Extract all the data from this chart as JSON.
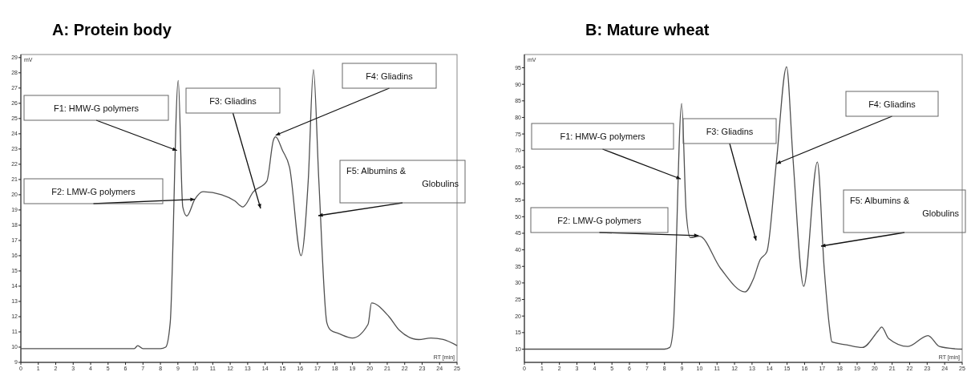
{
  "chart_data": [
    {
      "type": "line",
      "title": "A: Protein body",
      "xlabel": "RT [min]",
      "ylabel": "mV",
      "color": "#505050",
      "x": [
        0,
        1,
        2,
        3,
        4,
        5,
        6,
        6.5,
        6.7,
        7,
        8,
        8.3,
        8.56,
        9.02,
        9.28,
        9.51,
        9.97,
        10.43,
        11.5,
        12.26,
        12.72,
        13.33,
        14.1,
        14.48,
        14.6,
        15.0,
        15.4,
        16.06,
        16.47,
        16.77,
        17.08,
        17.54,
        17.77,
        18.2,
        19.0,
        19.9,
        20.1,
        21.1,
        21.7,
        22.8,
        23.5,
        24.2,
        25
      ],
      "values": [
        9.9,
        9.9,
        9.9,
        9.9,
        9.9,
        9.9,
        9.9,
        9.9,
        10.1,
        9.9,
        9.9,
        10.0,
        11.6,
        27.5,
        19.2,
        18.6,
        19.7,
        20.2,
        20.0,
        19.6,
        19.2,
        20.2,
        20.9,
        23.6,
        23.8,
        22.9,
        21.8,
        16.0,
        20.9,
        28.2,
        20.9,
        11.6,
        11.1,
        10.9,
        10.6,
        11.5,
        12.9,
        12.0,
        11.1,
        10.5,
        10.6,
        10.5,
        10.1
      ],
      "xlim": [
        0,
        25
      ],
      "ylim": [
        9,
        29.2
      ],
      "xticks": [
        0,
        1,
        2,
        3,
        4,
        5,
        6,
        7,
        8,
        9,
        10,
        11,
        12,
        13,
        14,
        15,
        16,
        17,
        18,
        19,
        20,
        21,
        22,
        23,
        24,
        25
      ],
      "yticks": [
        9,
        10,
        11,
        12,
        13,
        14,
        15,
        16,
        17,
        18,
        19,
        20,
        21,
        22,
        23,
        24,
        25,
        26,
        27,
        28,
        29
      ],
      "annotations": [
        {
          "text": "F1: HMW-G polymers",
          "x": 8.95,
          "y": 22.9
        },
        {
          "text": "F2: LMW-G polymers",
          "x": 9.97,
          "y": 19.7
        },
        "F3: Gliadins",
        {
          "text": "F4: Gliadins",
          "x": 14.6,
          "y": 23.9
        },
        "F5: Albumins &",
        "Globulins"
      ]
    },
    {
      "type": "line",
      "title": "B: Mature wheat",
      "xlabel": "RT [min]",
      "ylabel": "mV",
      "color": "#505050",
      "x": [
        0,
        2,
        4,
        6,
        8,
        8.3,
        8.5,
        8.98,
        9.24,
        9.47,
        10.0,
        11.2,
        12.6,
        13.07,
        13.46,
        13.85,
        14.39,
        14.97,
        15.33,
        15.95,
        16.73,
        17.12,
        17.43,
        17.56,
        18.4,
        19.3,
        20.2,
        20.4,
        20.8,
        21.9,
        23.05,
        23.7,
        24.6,
        25
      ],
      "values": [
        10,
        10,
        10,
        10,
        10,
        10.5,
        16.4,
        84.2,
        51.3,
        43.7,
        44.1,
        34.4,
        27.3,
        31.1,
        37.0,
        39.5,
        66.5,
        95.3,
        68.2,
        29.0,
        66.5,
        34.4,
        16.4,
        12.2,
        11.3,
        10.5,
        15.5,
        16.7,
        13.2,
        10.8,
        14.1,
        10.8,
        10.1,
        10
      ],
      "xlim": [
        0,
        25
      ],
      "ylim": [
        6,
        99
      ],
      "xticks": [
        0,
        1,
        2,
        3,
        4,
        5,
        6,
        7,
        8,
        9,
        10,
        11,
        12,
        13,
        14,
        15,
        16,
        17,
        18,
        19,
        20,
        21,
        22,
        23,
        24,
        25
      ],
      "yticks": [
        10,
        15,
        20,
        25,
        30,
        35,
        40,
        45,
        50,
        55,
        60,
        65,
        70,
        75,
        80,
        85,
        90,
        95
      ],
      "annotations": [
        {
          "text": "F1: HMW-G polymers",
          "x": 8.93,
          "y": 61.4
        },
        {
          "text": "F2: LMW-G polymers",
          "x": 9.95,
          "y": 44.3
        },
        "F3: Gliadins",
        {
          "text": "F4: Gliadins",
          "x": 14.39,
          "y": 66.0
        },
        "F5: Albumins &",
        "Globulins"
      ]
    }
  ]
}
